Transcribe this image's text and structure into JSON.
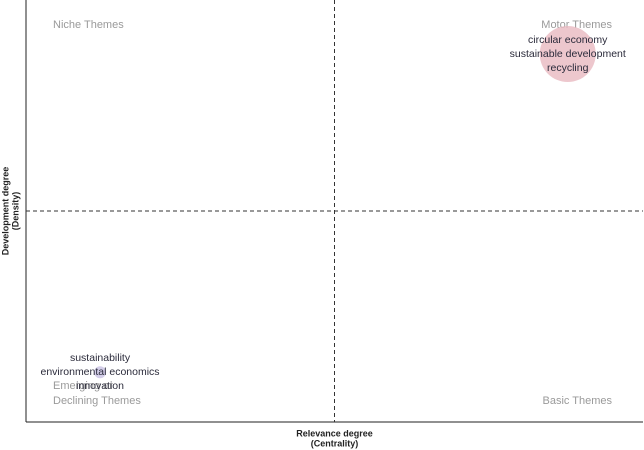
{
  "chart_data": {
    "type": "bubble",
    "x_label": [
      "Relevance degree",
      "(Centrality)"
    ],
    "y_label": [
      "Development degree",
      "(Density)"
    ],
    "xlim": [
      0,
      1
    ],
    "ylim": [
      0,
      1
    ],
    "xline": 0.5,
    "yline": 0.5,
    "quadrant_labels": {
      "top_left": [
        "Niche Themes"
      ],
      "top_right": [
        "Motor Themes"
      ],
      "bottom_left": [
        "Emerging or",
        "Declining Themes"
      ],
      "bottom_right": [
        "Basic Themes"
      ]
    },
    "points": [
      {
        "x": 0.878,
        "y": 0.872,
        "size": 28,
        "color": "#e9b9c0",
        "labels": [
          "circular economy",
          "sustainable development",
          "recycling"
        ]
      },
      {
        "x": 0.12,
        "y": 0.118,
        "size": 6,
        "color": "#c9c2e3",
        "labels": [
          "sustainability",
          "environmental economics",
          "innovation"
        ]
      }
    ]
  }
}
